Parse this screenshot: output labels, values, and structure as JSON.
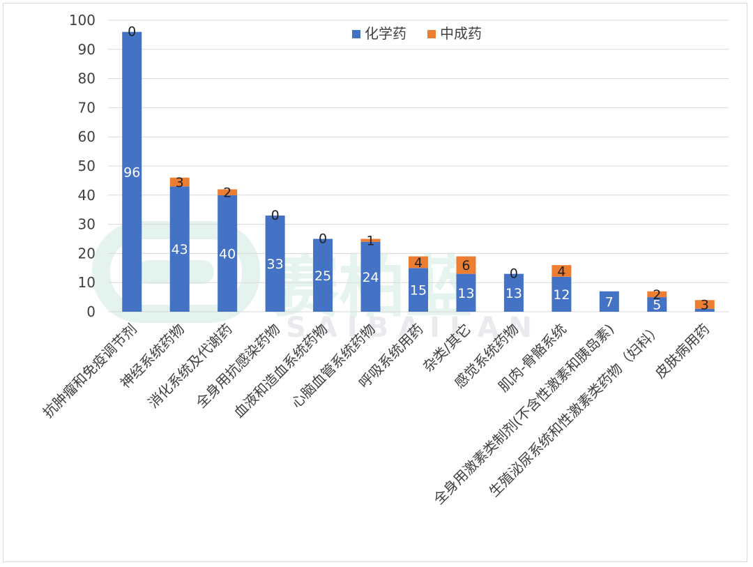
{
  "chart_data": {
    "type": "bar",
    "stacked": true,
    "categories": [
      "抗肿瘤和免疫调节剂",
      "神经系统药物",
      "消化系统及代谢药",
      "全身用抗感染药物",
      "血液和造血系统药物",
      "心脑血管系统药物",
      "呼吸系统用药",
      "杂类/其它",
      "感觉系统药物",
      "肌肉-骨骼系统",
      "全身用激素类制剂(不含性激素和胰岛素)",
      "生殖泌尿系统和性激素类药物（妇科）",
      "皮肤病用药"
    ],
    "series": [
      {
        "name": "化学药",
        "color": "#4472c4",
        "values": [
          96,
          43,
          40,
          33,
          25,
          24,
          15,
          13,
          13,
          12,
          7,
          5,
          1
        ],
        "labels": [
          "96",
          "43",
          "40",
          "33",
          "25",
          "24",
          "15",
          "13",
          "13",
          "12",
          "7",
          "5",
          ""
        ]
      },
      {
        "name": "中成药",
        "color": "#ed7d31",
        "values": [
          0,
          3,
          2,
          0,
          0,
          1,
          4,
          6,
          0,
          4,
          0,
          2,
          3
        ],
        "labels": [
          "0",
          "3",
          "2",
          "0",
          "0",
          "1",
          "4",
          "6",
          "0",
          "4",
          "",
          "2",
          "3"
        ]
      }
    ],
    "ylim": [
      0,
      100
    ],
    "yticks": [
      0,
      10,
      20,
      30,
      40,
      50,
      60,
      70,
      80,
      90,
      100
    ],
    "grid": true,
    "legend": "top-center"
  },
  "watermark": {
    "text": "赛柏蓝",
    "sub": "SAIBAILAN"
  }
}
